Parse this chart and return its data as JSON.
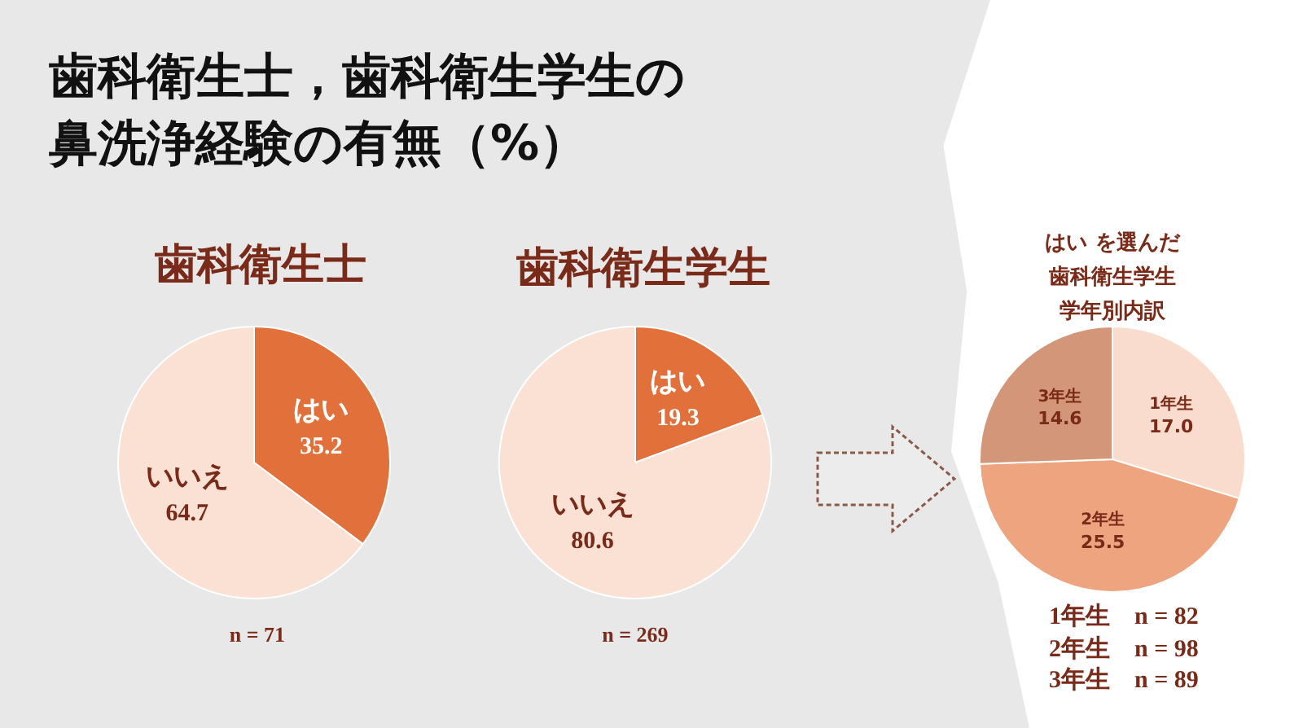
{
  "chart_data": [
    {
      "type": "pie",
      "title": "歯科衛生士，歯科衛生学生の鼻洗浄経験の有無（%）",
      "subtitle": "歯科衛生士",
      "categories": [
        "はい",
        "いいえ"
      ],
      "values": [
        35.2,
        64.7
      ],
      "colors": [
        "#e2703a",
        "#fbe1d3"
      ],
      "data_labels": true,
      "legend": false,
      "annotations": [
        "n = 71"
      ]
    },
    {
      "type": "pie",
      "title": "歯科衛生学生",
      "categories": [
        "はい",
        "いいえ"
      ],
      "values": [
        19.3,
        80.6
      ],
      "colors": [
        "#e2703a",
        "#fbe1d3"
      ],
      "data_labels": true,
      "legend": false,
      "annotations": [
        "n = 269"
      ]
    },
    {
      "type": "pie",
      "title": "はい を選んだ歯科衛生学生学年別内訳",
      "categories": [
        "1年生",
        "2年生",
        "3年生"
      ],
      "values": [
        17.0,
        25.5,
        14.6
      ],
      "value_labels": [
        "17.0",
        "25.5",
        "14.6"
      ],
      "colors": [
        "#f9dccd",
        "#eea47f",
        "#d49678"
      ],
      "legend": false,
      "annotations": [
        "1年生　n = 82",
        "2年生　n = 98",
        "3年生　n = 89"
      ]
    }
  ]
}
